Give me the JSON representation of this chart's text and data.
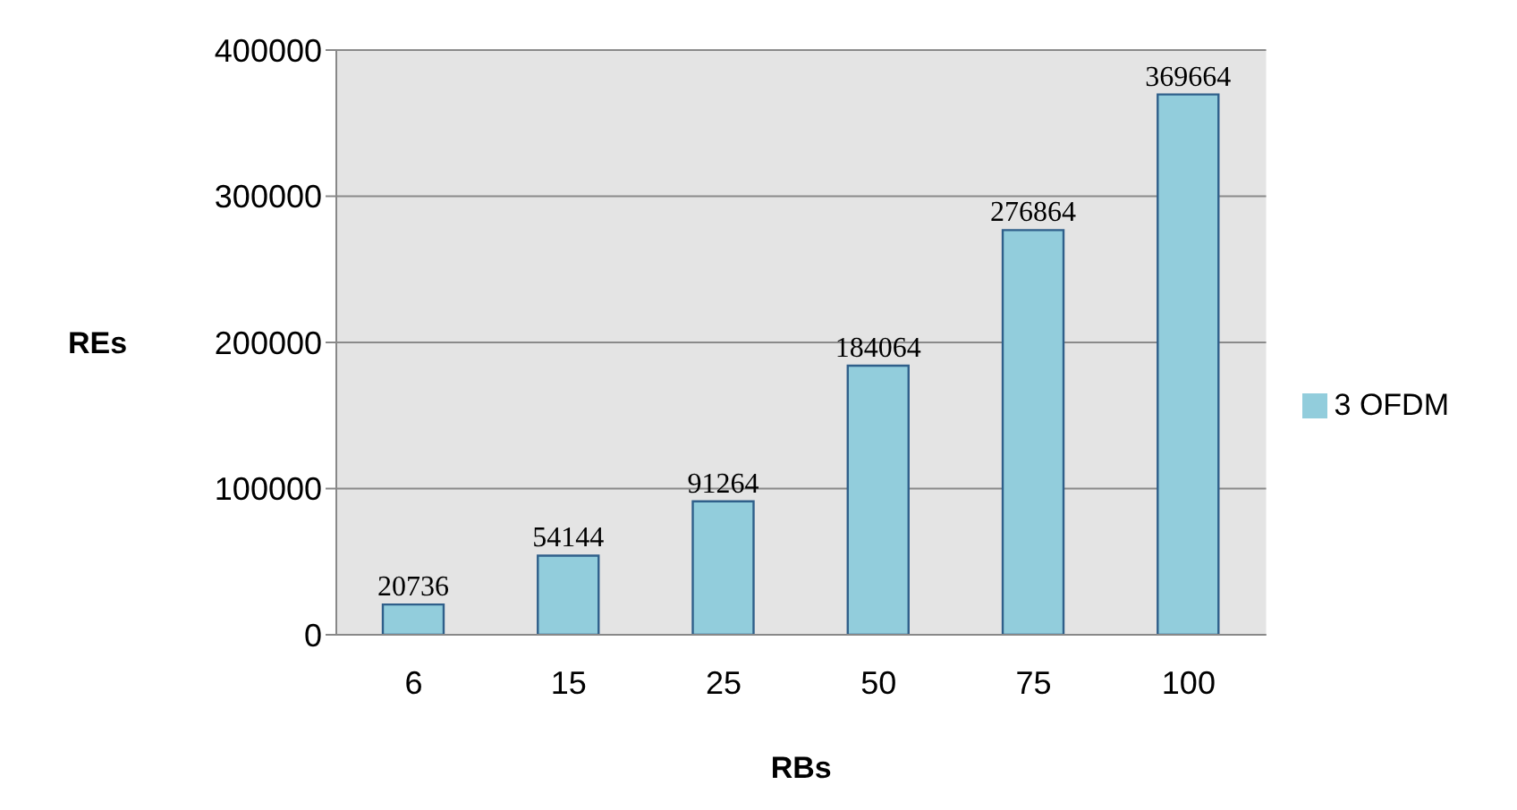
{
  "chart_data": {
    "type": "bar",
    "xlabel": "RBs",
    "ylabel": "REs",
    "categories": [
      "6",
      "15",
      "25",
      "50",
      "75",
      "100"
    ],
    "series": [
      {
        "name": "3 OFDM",
        "color": "#92cddc",
        "values": [
          20736,
          54144,
          91264,
          184064,
          276864,
          369664
        ]
      }
    ],
    "ylim": [
      0,
      400000
    ],
    "yticks": [
      0,
      100000,
      200000,
      300000,
      400000
    ],
    "grid": "y",
    "legend": "right",
    "data_labels": true
  }
}
